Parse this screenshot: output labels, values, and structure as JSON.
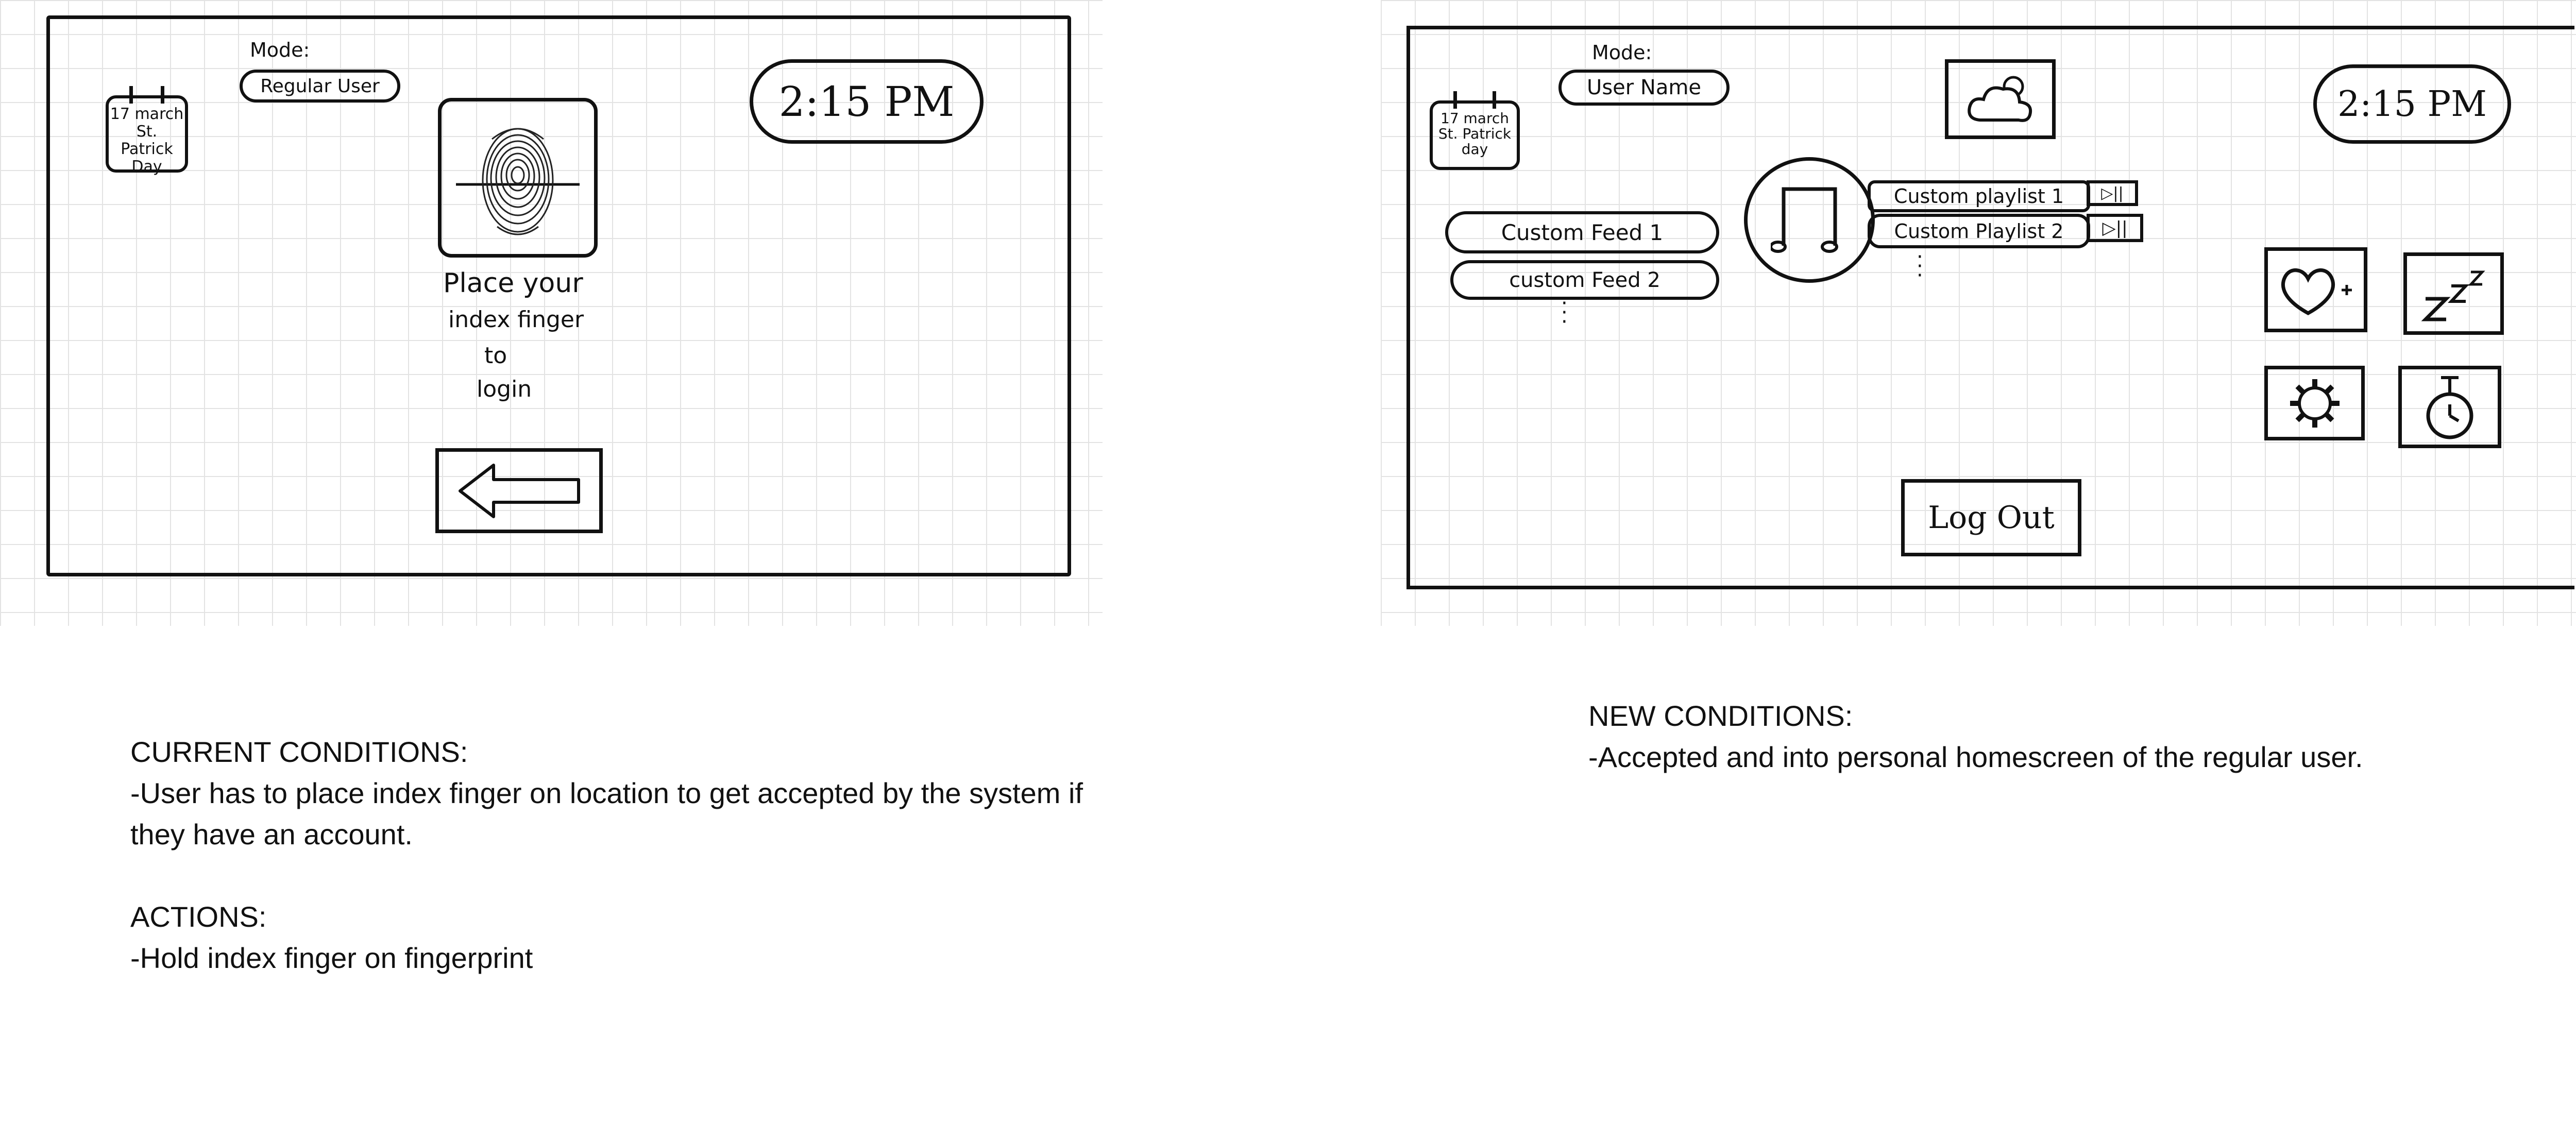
{
  "left_screen": {
    "mode_label": "Mode:",
    "mode_value": "Regular User",
    "time": "2:15 PM",
    "calendar": {
      "line1": "17 march",
      "line2": "St. Patrick",
      "line3": "Day"
    },
    "instruction": {
      "line1": "Place your",
      "line2": "index finger",
      "line3": "to",
      "line4": "login"
    },
    "icons": {
      "fingerprint": "fingerprint-icon",
      "back": "arrow-left-icon"
    }
  },
  "right_screen": {
    "mode_label": "Mode:",
    "mode_value": "User Name",
    "time": "2:15 PM",
    "calendar": {
      "line1": "17 march",
      "line2": "St. Patrick",
      "line3": "day"
    },
    "feeds": [
      "Custom Feed 1",
      "custom Feed 2"
    ],
    "playlists": [
      "Custom playlist 1",
      "Custom Playlist 2"
    ],
    "logout_label": "Log Out",
    "icons": {
      "weather": "weather-cloud-sun-icon",
      "music": "music-note-icon",
      "play_pause": "play-pause-icon",
      "favorite_add": "heart-plus-icon",
      "sleep": "sleep-zzz-icon",
      "settings": "gear-icon",
      "timer": "stopwatch-icon"
    }
  },
  "notes": {
    "current_title": "CURRENT CONDITIONS:",
    "current_line1": "-User has to place index finger on location to get accepted by the system if",
    "current_line2": "they have an account.",
    "actions_title": "ACTIONS:",
    "actions_line1": "-Hold index finger on fingerprint",
    "new_title": "NEW CONDITIONS:",
    "new_line1": "-Accepted and into personal homescreen of the regular user."
  }
}
